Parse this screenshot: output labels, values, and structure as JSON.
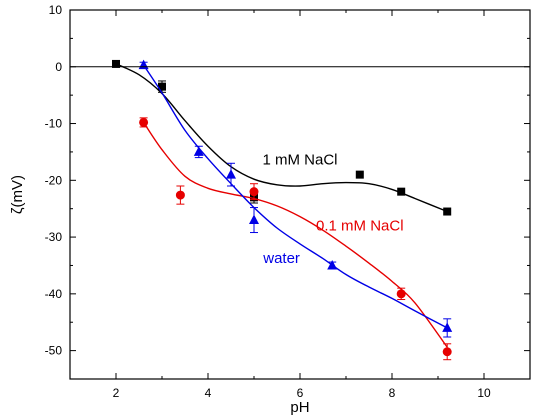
{
  "chart_data": {
    "type": "scatter",
    "xlabel": "pH",
    "ylabel": "ζ(mV)",
    "xlim": [
      1,
      11
    ],
    "ylim": [
      -55,
      10
    ],
    "xticks": [
      2,
      4,
      6,
      8,
      10
    ],
    "yticks": [
      10,
      0,
      -10,
      -20,
      -30,
      -40,
      -50
    ],
    "grid": false,
    "zero_line": true,
    "series": [
      {
        "name": "1 mM NaCl",
        "color": "#000000",
        "marker": "square",
        "x": [
          2.0,
          3.0,
          5.0,
          7.3,
          8.2,
          9.2
        ],
        "y": [
          0.5,
          -3.5,
          -23.0,
          -19.0,
          -22.0,
          -25.5
        ],
        "err": [
          0,
          1.0,
          1.0,
          0,
          0,
          0
        ],
        "fit_x": [
          2.0,
          2.5,
          3.0,
          3.5,
          4.0,
          4.5,
          5.0,
          5.5,
          6.0,
          6.5,
          7.0,
          7.5,
          8.0,
          8.5,
          9.2
        ],
        "fit_y": [
          0.5,
          -1.4,
          -4.7,
          -9.5,
          -14.0,
          -17.6,
          -19.8,
          -20.8,
          -21.0,
          -20.6,
          -20.4,
          -20.6,
          -21.6,
          -23.2,
          -25.5
        ]
      },
      {
        "name": "0.1 mM NaCl",
        "color": "#e60000",
        "marker": "circle",
        "x": [
          2.6,
          3.4,
          5.0,
          8.2,
          9.2
        ],
        "y": [
          -9.8,
          -22.6,
          -22.0,
          -40.0,
          -50.2
        ],
        "err": [
          0.8,
          1.6,
          1.4,
          1.0,
          1.4
        ],
        "fit_x": [
          2.6,
          3.0,
          3.5,
          4.0,
          4.5,
          5.0,
          5.5,
          6.0,
          6.5,
          7.0,
          7.5,
          8.0,
          8.5,
          9.2
        ],
        "fit_y": [
          -9.8,
          -14.6,
          -19.3,
          -21.4,
          -22.4,
          -23.2,
          -24.5,
          -26.4,
          -28.8,
          -31.6,
          -34.6,
          -37.8,
          -41.6,
          -49.4
        ]
      },
      {
        "name": "water",
        "color": "#0000e6",
        "marker": "triangle",
        "x": [
          2.6,
          3.8,
          4.5,
          5.0,
          6.7,
          9.2
        ],
        "y": [
          0.3,
          -15.0,
          -19.0,
          -27.0,
          -35.0,
          -46.0
        ],
        "err": [
          0.5,
          1.0,
          2.0,
          2.2,
          0.6,
          1.6
        ],
        "fit_x": [
          2.6,
          3.0,
          3.5,
          4.0,
          4.5,
          5.0,
          5.5,
          6.0,
          6.5,
          7.0,
          7.5,
          8.0,
          8.5,
          9.2
        ],
        "fit_y": [
          0.3,
          -4.6,
          -11.2,
          -16.2,
          -20.6,
          -24.8,
          -28.4,
          -31.2,
          -33.8,
          -36.6,
          -38.8,
          -40.8,
          -43.0,
          -46.0
        ]
      }
    ]
  }
}
